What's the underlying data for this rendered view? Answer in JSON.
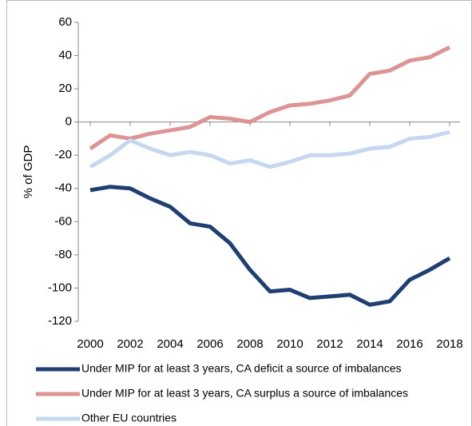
{
  "chart_data": {
    "type": "line",
    "y_label": "% of GDP",
    "x": [
      2000,
      2001,
      2002,
      2003,
      2004,
      2005,
      2006,
      2007,
      2008,
      2009,
      2010,
      2011,
      2012,
      2013,
      2014,
      2015,
      2016,
      2017,
      2018
    ],
    "xlim": [
      2000,
      2018
    ],
    "xticks": [
      2000,
      2002,
      2004,
      2006,
      2008,
      2010,
      2012,
      2014,
      2016,
      2018
    ],
    "ylim": [
      -120,
      60
    ],
    "yticks": [
      -120,
      -100,
      -80,
      -60,
      -40,
      -20,
      0,
      20,
      40,
      60
    ],
    "series": [
      {
        "name": "Under MIP for at least 3 years, CA deficit a source of imbalances",
        "color": "#1f3e72",
        "values": [
          -41,
          -39,
          -40,
          -46,
          -51,
          -61,
          -63,
          -73,
          -89,
          -102,
          -101,
          -106,
          -105,
          -104,
          -110,
          -108,
          -95,
          -89,
          -82
        ]
      },
      {
        "name": "Under MIP for at least 3 years, CA surplus a source of imbalances",
        "color": "#dc9494",
        "values": [
          -16,
          -8,
          -10,
          -7,
          -5,
          -3,
          3,
          2,
          0,
          6,
          10,
          11,
          13,
          16,
          29,
          31,
          37,
          39,
          45
        ]
      },
      {
        "name": "Other EU countries",
        "color": "#c5d8f0",
        "values": [
          -27,
          -20,
          -11,
          -16,
          -20,
          -18,
          -20,
          -25,
          -23,
          -27,
          -24,
          -20,
          -20,
          -19,
          -16,
          -15,
          -10,
          -9,
          -6
        ]
      }
    ]
  }
}
